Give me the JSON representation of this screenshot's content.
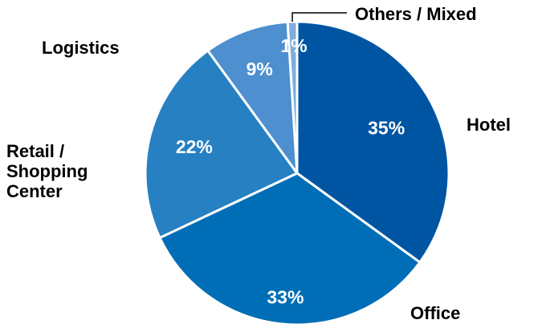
{
  "chart_data": {
    "type": "pie",
    "slices": [
      {
        "label": "Hotel",
        "value": 35,
        "value_label": "35%",
        "color": "#0055A3"
      },
      {
        "label": "Office",
        "value": 33,
        "value_label": "33%",
        "color": "#006EB6"
      },
      {
        "label": "Retail /\nShopping\nCenter",
        "value": 22,
        "value_label": "22%",
        "color": "#2680C2"
      },
      {
        "label": "Logistics",
        "value": 9,
        "value_label": "9%",
        "color": "#4D8FCF"
      },
      {
        "label": "Others / Mixed",
        "value": 1,
        "value_label": "1%",
        "color": "#7FAEDD"
      }
    ],
    "start_angle": "12 o'clock",
    "direction": "clockwise",
    "legend": "none",
    "slice_border_color": "#ffffff"
  }
}
